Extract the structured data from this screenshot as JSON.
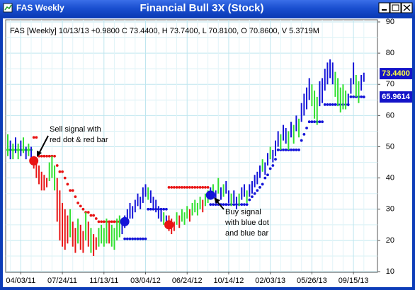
{
  "window": {
    "title": "FAS Weekly"
  },
  "chart_data": {
    "type": "ohlc",
    "title": "Financial Bull 3X (Stock)",
    "header": "FAS [Weekly] 10/13/13 +0.9800 C 73.4400, H 73.7400, L 70.8100, O 70.8600, V 5.3719M",
    "categories": [
      null,
      null,
      null,
      null,
      null,
      "04/03/11",
      null,
      null,
      null,
      null,
      null,
      null,
      null,
      null,
      null,
      null,
      null,
      null,
      null,
      null,
      null,
      "07/24/11",
      null,
      null,
      null,
      null,
      null,
      null,
      null,
      null,
      null,
      null,
      null,
      null,
      null,
      null,
      null,
      "11/13/11",
      null,
      null,
      null,
      null,
      null,
      null,
      null,
      null,
      null,
      null,
      null,
      null,
      null,
      null,
      null,
      "03/04/12",
      null,
      null,
      null,
      null,
      null,
      null,
      null,
      null,
      null,
      null,
      null,
      null,
      null,
      null,
      null,
      "06/24/12",
      null,
      null,
      null,
      null,
      null,
      null,
      null,
      null,
      null,
      null,
      null,
      null,
      null,
      null,
      null,
      "10/14/12",
      null,
      null,
      null,
      null,
      null,
      null,
      null,
      null,
      null,
      null,
      null,
      null,
      null,
      null,
      null,
      "02/03/13",
      null,
      null,
      null,
      null,
      null,
      null,
      null,
      null,
      null,
      null,
      null,
      null,
      null,
      null,
      null,
      "05/26/13",
      null,
      null,
      null,
      null,
      null,
      null,
      null,
      null,
      null,
      null,
      null,
      null,
      null,
      null,
      null,
      "09/15/13",
      null,
      null,
      null,
      null
    ],
    "bars": {
      "high": [
        54,
        52,
        51,
        53,
        51,
        52,
        53,
        50,
        51,
        50,
        47,
        45,
        44,
        42,
        41,
        40,
        45,
        47,
        44,
        40,
        36,
        32,
        30,
        28,
        30,
        26,
        24,
        27,
        25,
        23,
        29,
        26,
        24,
        22,
        21,
        24,
        25,
        24,
        27,
        26,
        25,
        24,
        27,
        28,
        27,
        28,
        30,
        32,
        31,
        33,
        35,
        34,
        37,
        38,
        37,
        36,
        34,
        33,
        31,
        30,
        29,
        28,
        28,
        27,
        26,
        29,
        28,
        30,
        29,
        31,
        30,
        32,
        33,
        32,
        34,
        33,
        35,
        36,
        37,
        38,
        36,
        40,
        37,
        38,
        39,
        36,
        35,
        36,
        34,
        35,
        37,
        38,
        36,
        38,
        39,
        41,
        42,
        44,
        46,
        45,
        48,
        50,
        49,
        52,
        55,
        54,
        57,
        56,
        55,
        58,
        57,
        60,
        59,
        64,
        67,
        69,
        72,
        70,
        68,
        66,
        71,
        72,
        75,
        77,
        78,
        77,
        74,
        72,
        69,
        70,
        68,
        67,
        72,
        77,
        73,
        71,
        73,
        73.74
      ],
      "low": [
        47,
        46,
        46,
        48,
        46,
        47,
        48,
        46,
        47,
        45,
        43,
        40,
        38,
        36,
        36,
        37,
        39,
        40,
        36,
        26,
        20,
        18,
        17,
        19,
        21,
        18,
        16,
        19,
        17,
        16,
        20,
        18,
        16,
        15,
        17,
        18,
        19,
        18,
        19,
        19,
        18,
        17,
        20,
        21,
        22,
        24,
        26,
        27,
        27,
        29,
        31,
        30,
        32,
        34,
        33,
        32,
        30,
        29,
        27,
        26,
        25,
        24,
        23,
        22,
        23,
        25,
        24,
        26,
        25,
        27,
        26,
        28,
        29,
        28,
        30,
        29,
        31,
        32,
        33,
        34,
        32,
        35,
        33,
        34,
        35,
        32,
        31,
        32,
        30,
        31,
        33,
        34,
        32,
        34,
        35,
        37,
        38,
        40,
        42,
        41,
        44,
        46,
        45,
        47,
        50,
        49,
        52,
        51,
        49,
        53,
        51,
        55,
        53,
        58,
        60,
        62,
        65,
        63,
        59,
        57,
        63,
        64,
        68,
        70,
        72,
        70,
        66,
        63,
        61,
        62,
        62,
        63,
        67,
        70,
        66,
        64,
        68,
        70.81
      ],
      "color": [
        "g",
        "b",
        "g",
        "b",
        "g",
        "b",
        "g",
        "b",
        "g",
        "b",
        "r",
        "r",
        "r",
        "r",
        "r",
        "r",
        "g",
        "g",
        "g",
        "r",
        "r",
        "r",
        "r",
        "r",
        "g",
        "r",
        "r",
        "g",
        "r",
        "r",
        "g",
        "r",
        "g",
        "r",
        "r",
        "g",
        "g",
        "g",
        "g",
        "r",
        "g",
        "g",
        "g",
        "g",
        "b",
        "b",
        "b",
        "b",
        "b",
        "b",
        "b",
        "b",
        "b",
        "b",
        "g",
        "b",
        "b",
        "b",
        "b",
        "b",
        "g",
        "b",
        "r",
        "r",
        "r",
        "g",
        "r",
        "g",
        "g",
        "g",
        "r",
        "g",
        "g",
        "g",
        "g",
        "r",
        "g",
        "g",
        "b",
        "g",
        "b",
        "g",
        "b",
        "g",
        "b",
        "b",
        "g",
        "b",
        "b",
        "g",
        "b",
        "b",
        "g",
        "b",
        "b",
        "b",
        "b",
        "b",
        "g",
        "b",
        "b",
        "g",
        "b",
        "b",
        "b",
        "g",
        "b",
        "b",
        "g",
        "b",
        "g",
        "b",
        "g",
        "b",
        "b",
        "b",
        "b",
        "g",
        "g",
        "g",
        "b",
        "b",
        "b",
        "b",
        "b",
        "b",
        "g",
        "g",
        "g",
        "g",
        "g",
        "b",
        "b",
        "b",
        "g",
        "g",
        "b",
        "b"
      ]
    },
    "palette": {
      "b": "#1414d8",
      "r": "#e81414",
      "g": "#30e030"
    },
    "stop": [
      49,
      49,
      49,
      49,
      49,
      49,
      49,
      49,
      49,
      49,
      53,
      53,
      47,
      47,
      47,
      47,
      47,
      47,
      47,
      44,
      42,
      42,
      40,
      38,
      36,
      36,
      34,
      32,
      31,
      30,
      29,
      29,
      28,
      28,
      27,
      26,
      26,
      26,
      26,
      26,
      26,
      26,
      26,
      26,
      26,
      20.5,
      20.5,
      20.5,
      20.5,
      20.5,
      20.5,
      20.5,
      20.5,
      20.5,
      30,
      30,
      30,
      30,
      30,
      30,
      30,
      30,
      37,
      37,
      37,
      37,
      37,
      37,
      37,
      37,
      37,
      37,
      37,
      37,
      37,
      37,
      37,
      37,
      31.5,
      31.5,
      31.5,
      31.5,
      31.5,
      31.5,
      31.5,
      31.5,
      31.5,
      31.5,
      31.5,
      31.5,
      31.5,
      31.5,
      31.5,
      33,
      34,
      35,
      36,
      37,
      38,
      40,
      41,
      43,
      44,
      46,
      49,
      49,
      49,
      49,
      49,
      49,
      49,
      49,
      49,
      52,
      54,
      56,
      58,
      58,
      58,
      58,
      58,
      58,
      63.5,
      63.5,
      63.5,
      63.5,
      63.5,
      63.5,
      63.5,
      63.5,
      63.5,
      63.5,
      66,
      66,
      66,
      66,
      66,
      65.9614
    ],
    "signals": [
      {
        "week": 10,
        "value": 45.5,
        "color": "#e81414"
      },
      {
        "week": 45,
        "value": 26,
        "color": "#1414d8"
      },
      {
        "week": 62,
        "value": 25,
        "color": "#e81414"
      },
      {
        "week": 78,
        "value": 34.5,
        "color": "#1414d8"
      }
    ],
    "price_labels": [
      {
        "value": 73.44,
        "label": "73.4400"
      },
      {
        "value": 65.9614,
        "label": "65.9614"
      }
    ],
    "ylim": [
      10,
      90
    ],
    "yticks": [
      10,
      20,
      30,
      40,
      50,
      60,
      70,
      80,
      90
    ],
    "grid": true,
    "annotations": [
      {
        "lines": [
          "Sell signal with",
          "red dot & red bar"
        ]
      },
      {
        "lines": [
          "Buy signal",
          "with blue dot",
          "and blue bar"
        ]
      }
    ]
  }
}
